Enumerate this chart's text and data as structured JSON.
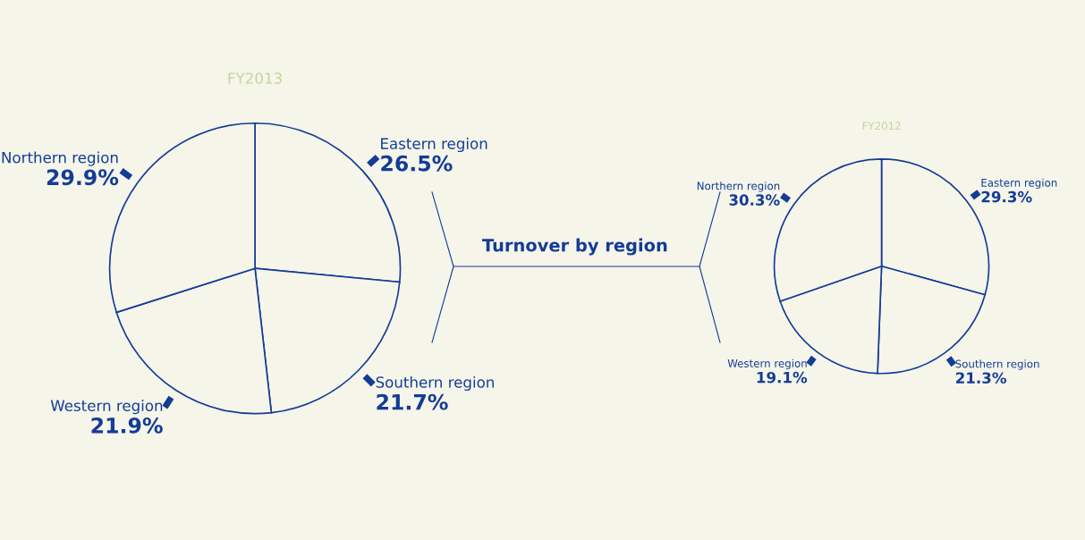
{
  "chart_data": [
    {
      "type": "pie",
      "title": "FY2013",
      "categories": [
        "Eastern region",
        "Southern region",
        "Western region",
        "Northern region"
      ],
      "values": [
        26.5,
        21.7,
        21.9,
        29.9
      ],
      "value_labels": [
        "26.5%",
        "21.7%",
        "21.9%",
        "29.9%"
      ],
      "colors": [
        "#f5f5e9",
        "#f5f5e9",
        "#f5f5e9",
        "#f5f5e9"
      ],
      "annotations": [
        "Turnover by region"
      ]
    },
    {
      "type": "pie",
      "title": "FY2012",
      "categories": [
        "Eastern region",
        "Southern region",
        "Western region",
        "Northern region"
      ],
      "values": [
        29.3,
        21.3,
        19.1,
        30.3
      ],
      "value_labels": [
        "29.3%",
        "21.3%",
        "19.1%",
        "30.3%"
      ],
      "colors": [
        "#f5f5e9",
        "#f5f5e9",
        "#f5f5e9",
        "#f5f5e9"
      ]
    }
  ]
}
